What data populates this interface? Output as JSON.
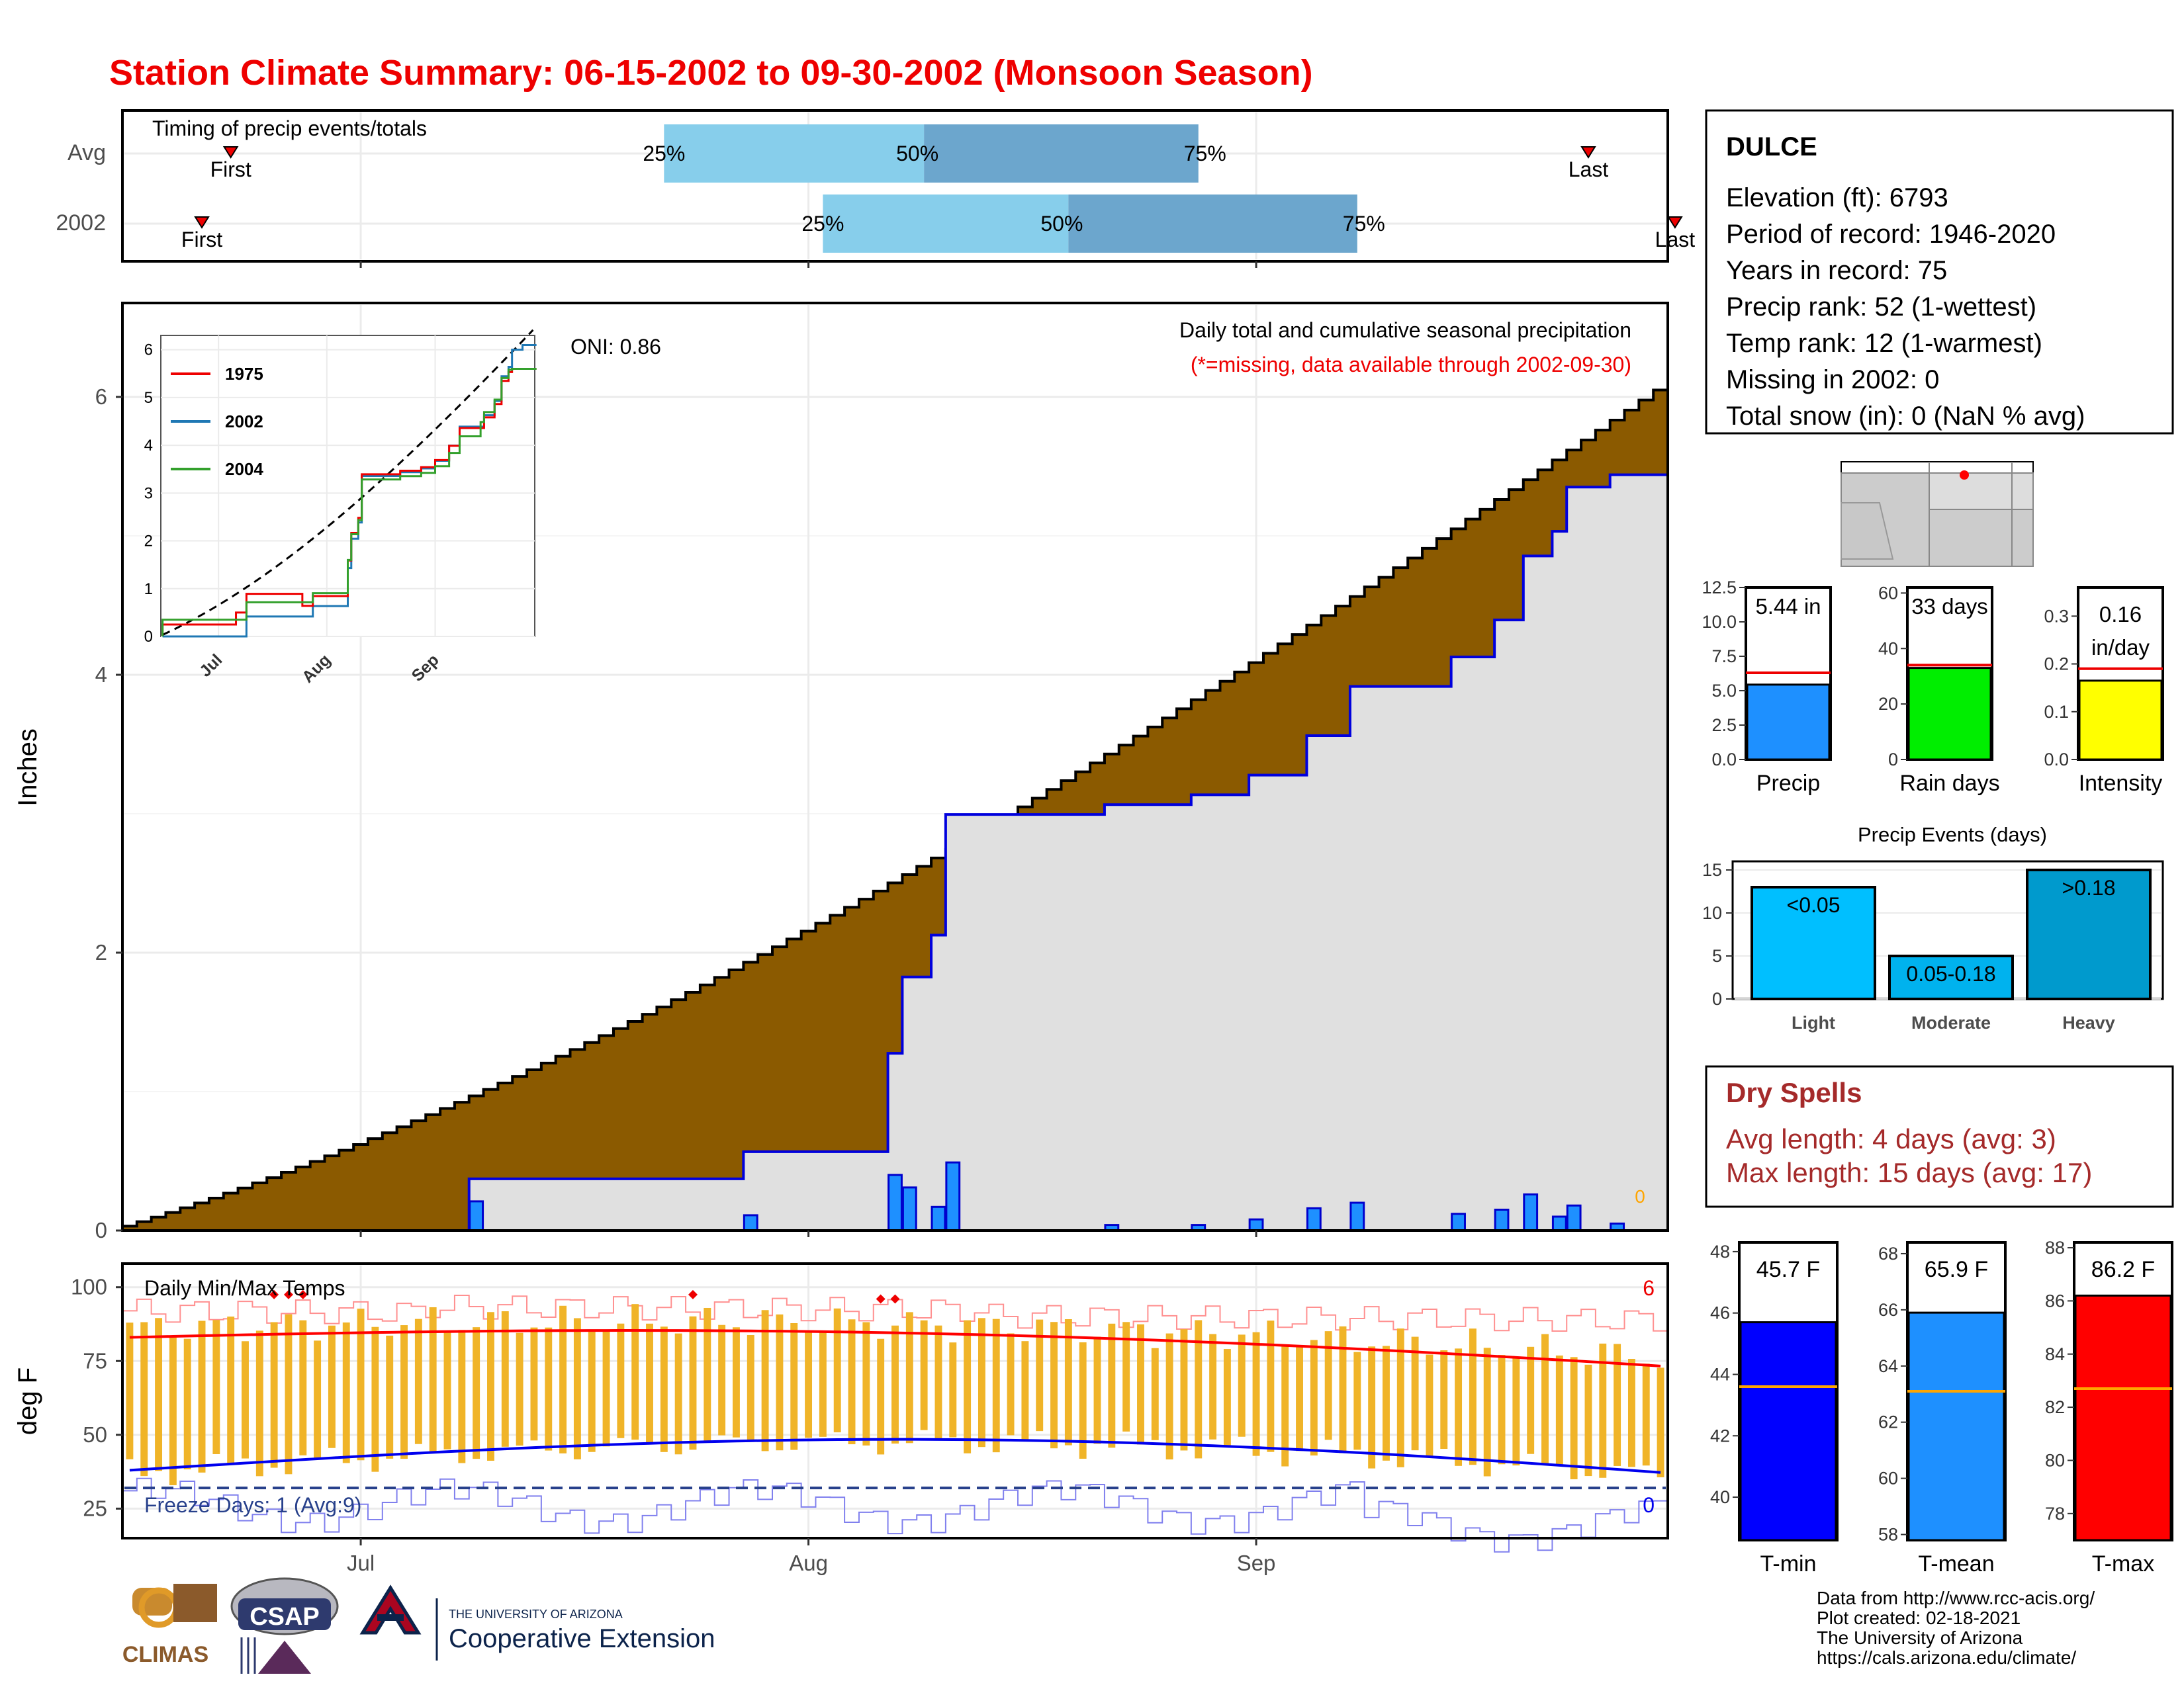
{
  "title": "Station Climate Summary: 06-15-2002 to 09-30-2002 (Monsoon Season)",
  "colors": {
    "title": "#ee0000",
    "q_light": "#87ceeb",
    "q_dark": "#6ca6cd",
    "cum_fill": "#8b5a00",
    "below_fill": "#e0e0e0",
    "daily_bar": "#1e90ff",
    "tmax_line": "#ff0000",
    "tmin_line": "#0000ee",
    "temp_bar": "#f0b428",
    "dry_spell_text": "#a52a2a"
  },
  "timing": {
    "title": "Timing of precip events/totals",
    "rows": [
      {
        "label": "Avg",
        "first_label": "First",
        "last_label": "Last",
        "first_date": "06-22",
        "last_date": "09-24",
        "q25_label": "25%",
        "q50_label": "50%",
        "q75_label": "75%",
        "q25": "07-22",
        "q50": "08-09",
        "q75": "08-28"
      },
      {
        "label": "2002",
        "first_label": "First",
        "last_label": "Last",
        "first_date": "06-20",
        "last_date": "09-30",
        "q25_label": "25%",
        "q50_label": "50%",
        "q75_label": "75%",
        "q25": "08-02",
        "q50": "08-19",
        "q75": "09-08"
      }
    ]
  },
  "station": {
    "name": "DULCE",
    "lines": [
      "Elevation (ft): 6793",
      "Period of record: 1946-2020",
      "Years in record: 75",
      "Precip rank: 52 (1-wettest)",
      "Temp rank: 12 (1-warmest)",
      "Missing in 2002: 0",
      "Total snow (in): 0 (NaN % avg)"
    ]
  },
  "precip_panel": {
    "ylabel": "Inches",
    "caption": "Daily total and cumulative seasonal precipitation",
    "missing_note": "(*=missing, data available through 2002-09-30)",
    "oni": "ONI: 0.86",
    "end_marker": "0",
    "y_ticks": [
      "0",
      "2",
      "4",
      "6"
    ],
    "x_ticks": [
      "Jul",
      "Aug",
      "Sep"
    ]
  },
  "inset": {
    "legend": [
      "1975",
      "2002",
      "2004"
    ],
    "y_ticks": [
      "0",
      "1",
      "2",
      "3",
      "4",
      "5",
      "6"
    ],
    "x_ticks": [
      "Jul",
      "Aug",
      "Sep"
    ]
  },
  "summary_bars": [
    {
      "label": "Precip",
      "value_text": "5.44 in",
      "value": 5.44,
      "avg": 6.3,
      "ymax": 12.5,
      "ticks": [
        "0.0",
        "2.5",
        "5.0",
        "7.5",
        "10.0",
        "12.5"
      ],
      "tick_values": [
        0,
        2.5,
        5,
        7.5,
        10,
        12.5
      ],
      "color": "#1e90ff"
    },
    {
      "label": "Rain days",
      "value_text": "33 days",
      "value": 33,
      "avg": 34,
      "ymax": 62,
      "ticks": [
        "0",
        "20",
        "40",
        "60"
      ],
      "tick_values": [
        0,
        20,
        40,
        60
      ],
      "color": "#00ee00"
    },
    {
      "label": "Intensity",
      "value_text": "0.16",
      "value_text2": "in/day",
      "value": 0.165,
      "avg": 0.19,
      "ymax": 0.36,
      "ticks": [
        "0.0",
        "0.1",
        "0.2",
        "0.3"
      ],
      "tick_values": [
        0,
        0.1,
        0.2,
        0.3
      ],
      "color": "#ffff00"
    }
  ],
  "events": {
    "title": "Precip Events (days)",
    "ymax": 16,
    "y_ticks": [
      "0",
      "5",
      "10",
      "15"
    ],
    "y_tick_values": [
      0,
      5,
      10,
      15
    ],
    "bars": [
      {
        "label": "Light",
        "value": 13,
        "text": "<0.05",
        "color": "#00bfff"
      },
      {
        "label": "Moderate",
        "value": 5,
        "text": "0.05-0.18",
        "color": "#00b2ee"
      },
      {
        "label": "Heavy",
        "value": 15,
        "text": ">0.18",
        "color": "#009acd"
      }
    ]
  },
  "dry_spells": {
    "title": "Dry Spells",
    "avg_line": "Avg length: 4 days (avg: 3)",
    "max_line": "Max length: 15 days (avg: 17)"
  },
  "temps_panel": {
    "title": "Daily Min/Max Temps",
    "ylabel": "deg F",
    "freeze": "Freeze Days: 1 (Avg:9)",
    "hot_count": "6",
    "cold_count": "0",
    "y_ticks": [
      "25",
      "50",
      "75",
      "100"
    ],
    "y_tick_values": [
      25,
      50,
      75,
      100
    ],
    "x_ticks": [
      "Jul",
      "Aug",
      "Sep"
    ]
  },
  "temp_bars": [
    {
      "label": "T-min",
      "value_text": "45.7 F",
      "value": 45.7,
      "avg": 43.6,
      "ymin": 38.6,
      "ymax": 48.3,
      "ticks": [
        "40",
        "42",
        "44",
        "46",
        "48"
      ],
      "tick_values": [
        40,
        42,
        44,
        46,
        48
      ],
      "color": "#0000ff"
    },
    {
      "label": "T-mean",
      "value_text": "65.9 F",
      "value": 65.9,
      "avg": 63.1,
      "ymin": 57.8,
      "ymax": 68.4,
      "ticks": [
        "58",
        "60",
        "62",
        "64",
        "66",
        "68"
      ],
      "tick_values": [
        58,
        60,
        62,
        64,
        66,
        68
      ],
      "color": "#1e90ff"
    },
    {
      "label": "T-max",
      "value_text": "86.2 F",
      "value": 86.2,
      "avg": 82.7,
      "ymin": 77.0,
      "ymax": 88.2,
      "ticks": [
        "78",
        "80",
        "82",
        "84",
        "86",
        "88"
      ],
      "tick_values": [
        78,
        80,
        82,
        84,
        86,
        88
      ],
      "color": "#ff0000"
    }
  ],
  "footer": {
    "lines": [
      "Data from http://www.rcc-acis.org/",
      "Plot created: 02-18-2021",
      "The University of Arizona",
      "https://cals.arizona.edu/climate/"
    ],
    "logos": {
      "climas": "CLIMAS",
      "csap": "CSAP",
      "ua_small": "THE UNIVERSITY OF ARIZONA",
      "ua_big": "Cooperative Extension"
    }
  },
  "chart_data": {
    "type": "bar",
    "start_date": "2002-06-15",
    "end_date": "2002-09-30",
    "daily_precip_in": {
      "07-09": 0.21,
      "07-28": 0.11,
      "08-07": 0.4,
      "08-08": 0.31,
      "08-10": 0.17,
      "08-11": 0.49,
      "08-22": 0.04,
      "08-28": 0.04,
      "09-01": 0.08,
      "09-05": 0.16,
      "09-08": 0.2,
      "09-15": 0.12,
      "09-18": 0.15,
      "09-20": 0.26,
      "09-22": 0.1,
      "09-23": 0.18,
      "09-26": 0.05
    },
    "cumulative_2002_end": 5.44,
    "cumulative_avg_end": 6.05,
    "temp_means_F": {
      "tmin": 45.7,
      "tmean": 65.9,
      "tmax": 86.2
    }
  }
}
